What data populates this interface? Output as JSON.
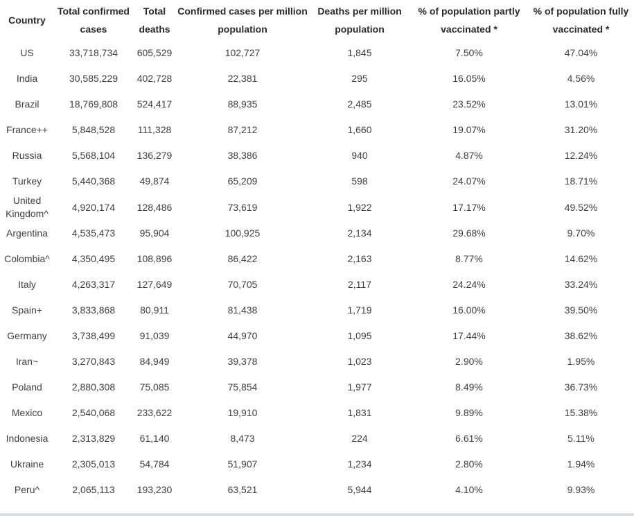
{
  "chart_data": {
    "type": "table",
    "columns": [
      "Country",
      "Total confirmed cases",
      "Total deaths",
      "Confirmed cases per million population",
      "Deaths per million population",
      "% of population partly vaccinated *",
      "% of population fully vaccinated *"
    ],
    "rows": [
      [
        "US",
        "33,718,734",
        "605,529",
        "102,727",
        "1,845",
        "7.50%",
        "47.04%"
      ],
      [
        "India",
        "30,585,229",
        "402,728",
        "22,381",
        "295",
        "16.05%",
        "4.56%"
      ],
      [
        "Brazil",
        "18,769,808",
        "524,417",
        "88,935",
        "2,485",
        "23.52%",
        "13.01%"
      ],
      [
        "France++",
        "5,848,528",
        "111,328",
        "87,212",
        "1,660",
        "19.07%",
        "31.20%"
      ],
      [
        "Russia",
        "5,568,104",
        "136,279",
        "38,386",
        "940",
        "4.87%",
        "12.24%"
      ],
      [
        "Turkey",
        "5,440,368",
        "49,874",
        "65,209",
        "598",
        "24.07%",
        "18.71%"
      ],
      [
        "United Kingdom^",
        "4,920,174",
        "128,486",
        "73,619",
        "1,922",
        "17.17%",
        "49.52%"
      ],
      [
        "Argentina",
        "4,535,473",
        "95,904",
        "100,925",
        "2,134",
        "29.68%",
        "9.70%"
      ],
      [
        "Colombia^",
        "4,350,495",
        "108,896",
        "86,422",
        "2,163",
        "8.77%",
        "14.62%"
      ],
      [
        "Italy",
        "4,263,317",
        "127,649",
        "70,705",
        "2,117",
        "24.24%",
        "33.24%"
      ],
      [
        "Spain+",
        "3,833,868",
        "80,911",
        "81,438",
        "1,719",
        "16.00%",
        "39.50%"
      ],
      [
        "Germany",
        "3,738,499",
        "91,039",
        "44,970",
        "1,095",
        "17.44%",
        "38.62%"
      ],
      [
        "Iran~",
        "3,270,843",
        "84,949",
        "39,378",
        "1,023",
        "2.90%",
        "1.95%"
      ],
      [
        "Poland",
        "2,880,308",
        "75,085",
        "75,854",
        "1,977",
        "8.49%",
        "36.73%"
      ],
      [
        "Mexico",
        "2,540,068",
        "233,622",
        "19,910",
        "1,831",
        "9.89%",
        "15.38%"
      ],
      [
        "Indonesia",
        "2,313,829",
        "61,140",
        "8,473",
        "224",
        "6.61%",
        "5.11%"
      ],
      [
        "Ukraine",
        "2,305,013",
        "54,784",
        "51,907",
        "1,234",
        "2.80%",
        "1.94%"
      ],
      [
        "Peru^",
        "2,065,113",
        "193,230",
        "63,521",
        "5,944",
        "4.10%",
        "9.93%"
      ]
    ]
  },
  "colors": {
    "background": "#ffffff",
    "header_text": "#2b2b2b",
    "body_text": "#3f3f3f",
    "bottom_bar": "#d9dee3"
  }
}
